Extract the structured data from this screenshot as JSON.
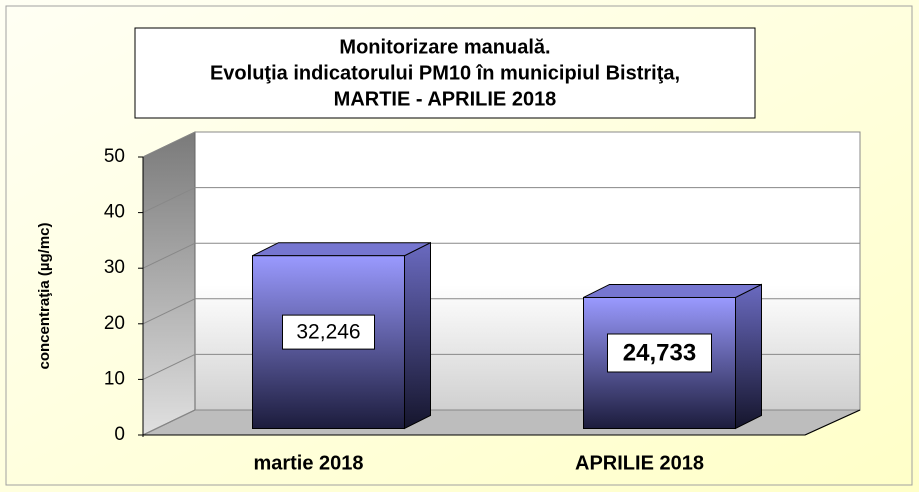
{
  "chart_data": {
    "type": "bar3d",
    "title": [
      "Monitorizare manuală.",
      "Evoluţia indicatorului PM10 în municipiul Bistriţa,",
      "MARTIE - APRILIE 2018"
    ],
    "y_label": "concentraţia (µg/mc)",
    "categories": [
      "martie 2018",
      "APRILIE 2018"
    ],
    "values": [
      32.246,
      24.733
    ],
    "value_labels": [
      "32,246",
      "24,733"
    ],
    "color": "#8f8fff",
    "ylim": [
      0,
      50
    ],
    "yticks": [
      0,
      10,
      20,
      30,
      40,
      50
    ],
    "grid": true
  }
}
